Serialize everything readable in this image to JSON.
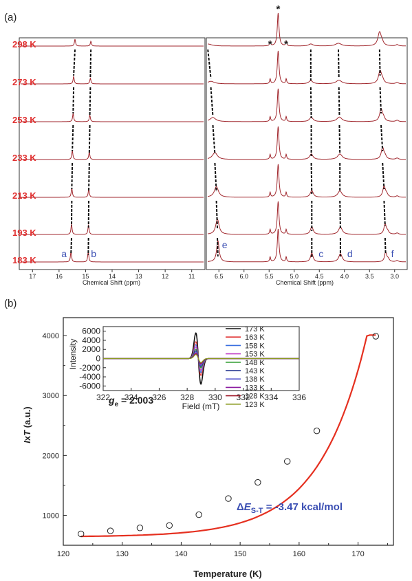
{
  "chart_data": [
    {
      "type": "line",
      "panel_label": "(a)",
      "xlabel": "Chemical Shift (ppm)",
      "temperatures": [
        "298 K",
        "273 K",
        "253 K",
        "233 K",
        "213 K",
        "193 K",
        "183 K"
      ],
      "left_range": {
        "xlim": [
          17.5,
          10.5
        ],
        "ticks": [
          "17",
          "16",
          "15",
          "14",
          "13",
          "12",
          "11"
        ]
      },
      "right_range": {
        "xlim": [
          6.75,
          2.75
        ],
        "ticks": [
          "6.5",
          "6.0",
          "5.5",
          "5.0",
          "4.5",
          "4.0",
          "3.5",
          "3.0"
        ]
      },
      "peak_labels": [
        {
          "label": "a",
          "ppm": 15.55
        },
        {
          "label": "b",
          "ppm": 14.9
        },
        {
          "label": "e",
          "ppm": 6.52
        },
        {
          "label": "c",
          "ppm": 4.65
        },
        {
          "label": "d",
          "ppm": 4.08
        },
        {
          "label": "f",
          "ppm": 3.18
        }
      ],
      "solvent_markers": [
        "*",
        "*",
        "*"
      ],
      "solvent_peaks_ppm": [
        5.32,
        5.48,
        5.16
      ],
      "peak_positions_ppm": {
        "a": [
          15.4,
          15.45,
          15.47,
          15.5,
          15.52,
          15.53,
          15.55
        ],
        "b": [
          14.8,
          14.82,
          14.84,
          14.86,
          14.88,
          14.89,
          14.9
        ],
        "e": [
          6.72,
          6.66,
          6.62,
          6.58,
          6.55,
          6.53,
          6.52
        ],
        "c": [
          4.67,
          4.67,
          4.66,
          4.66,
          4.65,
          4.65,
          4.65
        ],
        "d": [
          4.12,
          4.11,
          4.1,
          4.09,
          4.09,
          4.08,
          4.08
        ],
        "f": [
          3.3,
          3.29,
          3.27,
          3.24,
          3.21,
          3.19,
          3.18
        ]
      }
    },
    {
      "type": "scatter",
      "panel_label": "(b)",
      "xlabel": "Temperature (K)",
      "ylabel": "IxT (a.u.)",
      "xlim": [
        120,
        176
      ],
      "ylim": [
        500,
        4300
      ],
      "xticks": [
        "120",
        "130",
        "140",
        "150",
        "160",
        "170"
      ],
      "yticks": [
        "1000",
        "2000",
        "3000",
        "4000"
      ],
      "x": [
        123,
        128,
        133,
        138,
        143,
        148,
        153,
        158,
        163,
        173
      ],
      "y": [
        690,
        740,
        790,
        830,
        1010,
        1280,
        1550,
        1900,
        2410,
        3990
      ],
      "annotation": "ΔES-T = -3.47 kcal/mol",
      "annotation_parts": {
        "delta": "Δ",
        "e": "E",
        "sub": "S-T",
        "rest": " = -3.47 kcal/mol"
      },
      "inset": {
        "type": "line",
        "xlabel": "Field (mT)",
        "ylabel": "Intensity",
        "xlim": [
          322,
          336
        ],
        "ylim": [
          -7000,
          7000
        ],
        "xticks": [
          "322",
          "324",
          "326",
          "328",
          "330",
          "332",
          "334",
          "336"
        ],
        "yticks": [
          "6000",
          "4000",
          "2000",
          "0",
          "-2000",
          "-4000",
          "-6000"
        ],
        "center_field": 328.8,
        "annotation": "ge = 2.003",
        "annotation_parts": {
          "g": "g",
          "sub": "e",
          "rest": " = 2.003"
        },
        "series": [
          {
            "name": "173 K",
            "color": "#111111",
            "amplitude": 6800
          },
          {
            "name": "163 K",
            "color": "#e03030",
            "amplitude": 4500
          },
          {
            "name": "158 K",
            "color": "#3a6fe0",
            "amplitude": 3700
          },
          {
            "name": "153 K",
            "color": "#c040c8",
            "amplitude": 3100
          },
          {
            "name": "148 K",
            "color": "#2a9a2a",
            "amplitude": 2500
          },
          {
            "name": "143 K",
            "color": "#1a2a8a",
            "amplitude": 2100
          },
          {
            "name": "138 K",
            "color": "#5a5ad0",
            "amplitude": 1800
          },
          {
            "name": "133 K",
            "color": "#8a1aa0",
            "amplitude": 1500
          },
          {
            "name": "128 K",
            "color": "#a01a2a",
            "amplitude": 1250
          },
          {
            "name": "123 K",
            "color": "#8a9a20",
            "amplitude": 1050
          }
        ]
      },
      "colors": {
        "fit": "#e53020",
        "points": "#222222"
      }
    }
  ]
}
